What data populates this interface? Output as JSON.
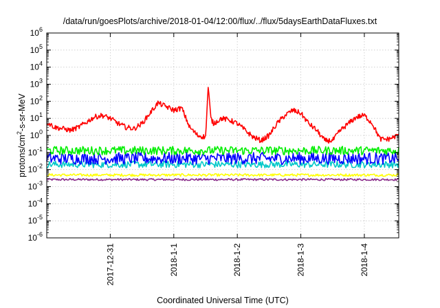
{
  "chart_data": {
    "type": "line",
    "title": "/data/run/goesPlots/archive/2018-01-04/12:00/flux/../flux/5daysEarthDataFluxes.txt",
    "xlabel": "Coordinated Universal Time (UTC)",
    "ylabel": {
      "base": "protons/cm",
      "sup": "2",
      "rest": "-s-sr-MeV"
    },
    "y_scale": "log",
    "ylim": [
      1e-06,
      1000000.0
    ],
    "xlim": [
      "2017-12-30 00:00",
      "2018-01-04 13:00"
    ],
    "grid": true,
    "legend": "none",
    "y_ticks": [
      {
        "value": 1e-06,
        "base": "10",
        "exp": "-6"
      },
      {
        "value": 1e-05,
        "base": "10",
        "exp": "-5"
      },
      {
        "value": 0.0001,
        "base": "10",
        "exp": "-4"
      },
      {
        "value": 0.001,
        "base": "10",
        "exp": "-3"
      },
      {
        "value": 0.01,
        "base": "10",
        "exp": "-2"
      },
      {
        "value": 0.1,
        "base": "10",
        "exp": "-1"
      },
      {
        "value": 1,
        "base": "10",
        "exp": "0"
      },
      {
        "value": 10,
        "base": "10",
        "exp": "1"
      },
      {
        "value": 100,
        "base": "10",
        "exp": "2"
      },
      {
        "value": 1000,
        "base": "10",
        "exp": "3"
      },
      {
        "value": 10000,
        "base": "10",
        "exp": "4"
      },
      {
        "value": 100000,
        "base": "10",
        "exp": "5"
      },
      {
        "value": 1000000,
        "base": "10",
        "exp": "6"
      }
    ],
    "x_ticks": [
      {
        "value": "2017-12-31 00:00",
        "label": "2017-12-31"
      },
      {
        "value": "2018-01-01 00:00",
        "label": "2018-1-1"
      },
      {
        "value": "2018-01-02 00:00",
        "label": "2018-1-2"
      },
      {
        "value": "2018-01-03 00:00",
        "label": "2018-1-3"
      },
      {
        "value": "2018-01-04 00:00",
        "label": "2018-1-4"
      }
    ],
    "series": [
      {
        "color": "#ff0000",
        "x": [
          "2017-12-30 00:00",
          "2017-12-30 03:00",
          "2017-12-30 06:00",
          "2017-12-30 09:00",
          "2017-12-30 12:00",
          "2017-12-30 15:00",
          "2017-12-30 18:00",
          "2017-12-30 21:00",
          "2017-12-31 00:00",
          "2017-12-31 03:00",
          "2017-12-31 06:00",
          "2017-12-31 09:00",
          "2017-12-31 12:00",
          "2017-12-31 15:00",
          "2017-12-31 18:00",
          "2017-12-31 21:00",
          "2018-01-01 00:00",
          "2018-01-01 03:00",
          "2018-01-01 06:00",
          "2018-01-01 09:00",
          "2018-01-01 12:00",
          "2018-01-01 13:00",
          "2018-01-01 14:00",
          "2018-01-01 15:00",
          "2018-01-01 18:00",
          "2018-01-01 21:00",
          "2018-01-02 00:00",
          "2018-01-02 03:00",
          "2018-01-02 06:00",
          "2018-01-02 09:00",
          "2018-01-02 12:00",
          "2018-01-02 15:00",
          "2018-01-02 18:00",
          "2018-01-02 21:00",
          "2018-01-03 00:00",
          "2018-01-03 03:00",
          "2018-01-03 06:00",
          "2018-01-03 09:00",
          "2018-01-03 12:00",
          "2018-01-03 15:00",
          "2018-01-03 18:00",
          "2018-01-03 21:00",
          "2018-01-04 00:00",
          "2018-01-04 03:00",
          "2018-01-04 06:00",
          "2018-01-04 09:00",
          "2018-01-04 12:00",
          "2018-01-04 13:00"
        ],
        "y": [
          6,
          3,
          2.5,
          2,
          3,
          6,
          12,
          15,
          10,
          5,
          3,
          2.5,
          5,
          20,
          80,
          50,
          30,
          40,
          3,
          1,
          0.8,
          700,
          10,
          5,
          10,
          8,
          5,
          2,
          0.8,
          0.5,
          1,
          5,
          15,
          30,
          20,
          5,
          2,
          0.5,
          0.5,
          2,
          5,
          12,
          15,
          5,
          0.6,
          0.6,
          0.9,
          1.2
        ]
      },
      {
        "color": "#00ee00",
        "level": 0.13,
        "spread": 0.5
      },
      {
        "color": "#0000ff",
        "level": 0.045,
        "spread": 0.7
      },
      {
        "color": "#00c8c8",
        "level": 0.02,
        "spread": 0.4
      },
      {
        "color": "#ffff00",
        "level": 0.0048,
        "spread": 0.15
      },
      {
        "color": "#8b2e8b",
        "level": 0.0026,
        "spread": 0.12
      }
    ]
  }
}
